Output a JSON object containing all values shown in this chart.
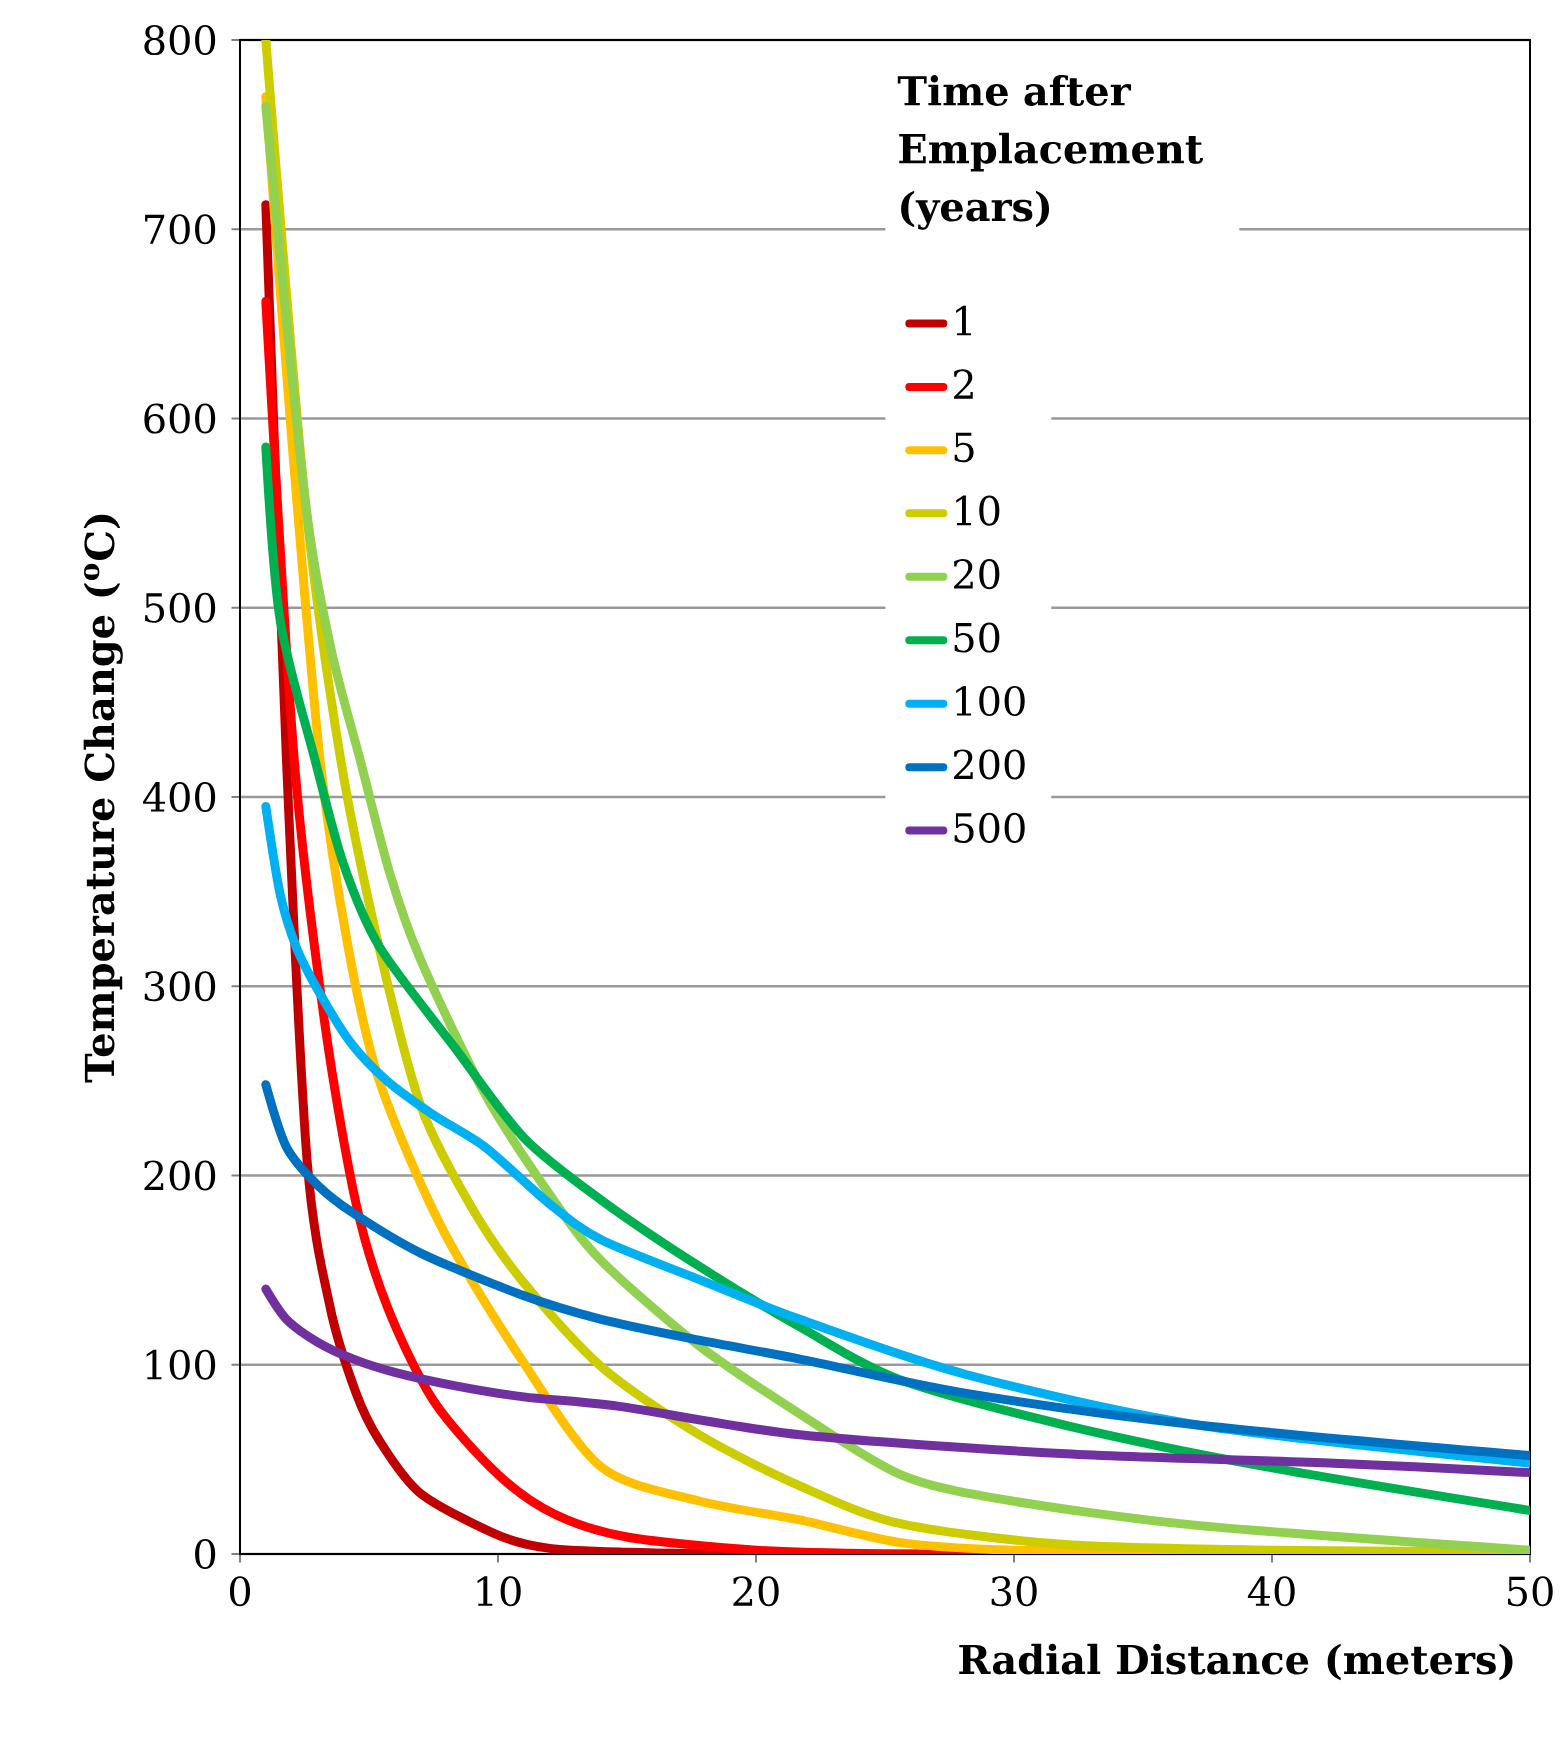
{
  "chart_data": {
    "type": "line",
    "xlabel": "Radial Distance (meters)",
    "ylabel": "Temperature Change ($^{o}$C)",
    "legend_title": "Time after Emplacement (years)",
    "legend": "top right",
    "grid": "y",
    "xlim": [
      0,
      50
    ],
    "ylim": [
      0,
      800
    ],
    "xticks": [
      0,
      10,
      20,
      30,
      40,
      50
    ],
    "yticks": [
      0,
      100,
      200,
      300,
      400,
      500,
      600,
      700,
      800
    ],
    "series": [
      {
        "name": "1",
        "color": "#c00000",
        "x": [
          1,
          1.8,
          2.6,
          3.5,
          4.5,
          5.4,
          7,
          10,
          12,
          15,
          20,
          30,
          50
        ],
        "values": [
          713,
          420,
          208,
          130,
          85,
          60,
          32,
          10,
          3,
          1,
          0,
          0,
          0
        ]
      },
      {
        "name": "2",
        "color": "#ff0000",
        "x": [
          1,
          2.1,
          3.3,
          4.5,
          5.7,
          7.5,
          10,
          12.2,
          15,
          20,
          25,
          30,
          50
        ],
        "values": [
          662,
          420,
          279,
          185,
          131,
          81,
          42,
          21,
          9,
          2,
          0,
          0,
          0
        ]
      },
      {
        "name": "5",
        "color": "#ffc000",
        "x": [
          1,
          2,
          3.1,
          4.2,
          5.4,
          7.8,
          10.9,
          14,
          17.8,
          21.7,
          25.6,
          30,
          40,
          50
        ],
        "values": [
          770,
          590,
          420,
          320,
          250,
          173,
          103,
          46,
          28,
          18,
          6,
          2,
          0,
          0
        ]
      },
      {
        "name": "10",
        "color": "#cccc00",
        "x": [
          1,
          2.5,
          3.9,
          5.4,
          7,
          8.9,
          10.9,
          14,
          17.8,
          21.7,
          25.6,
          32,
          40,
          50
        ],
        "values": [
          800,
          560,
          420,
          320,
          237,
          185,
          145,
          99,
          63,
          36,
          16,
          5,
          2,
          1
        ]
      },
      {
        "name": "20",
        "color": "#92d050",
        "x": [
          1,
          2.5,
          3.5,
          4.65,
          5.8,
          7,
          9.5,
          12,
          14,
          17.8,
          21.7,
          25.6,
          29.5,
          37.2,
          50
        ],
        "values": [
          765,
          560,
          480,
          420,
          360,
          314,
          243,
          190,
          155,
          110,
          74,
          42,
          29,
          15,
          2
        ]
      },
      {
        "name": "50",
        "color": "#00b050",
        "x": [
          1,
          1.55,
          2.9,
          4,
          5.4,
          8.3,
          11,
          14,
          17.8,
          21.7,
          25.6,
          32,
          39.8,
          50
        ],
        "values": [
          585,
          494,
          420,
          365,
          321,
          268,
          220,
          187,
          152,
          120,
          92,
          68,
          46,
          23
        ]
      },
      {
        "name": "100",
        "color": "#00b0f0",
        "x": [
          1,
          1.55,
          2.2,
          3.1,
          4.3,
          5.7,
          7.5,
          9.5,
          12,
          14,
          17.8,
          21.7,
          28.1,
          37.2,
          50
        ],
        "values": [
          395,
          349,
          320,
          296,
          270,
          250,
          232,
          215,
          185,
          166,
          145,
          124,
          95,
          68,
          48
        ]
      },
      {
        "name": "200",
        "color": "#0070c0",
        "x": [
          1,
          1.8,
          3,
          4.4,
          7,
          10.9,
          14,
          17.8,
          21.7,
          28.1,
          37.2,
          50
        ],
        "values": [
          248,
          215,
          195,
          180,
          159,
          137,
          124,
          113,
          103,
          85,
          68,
          52
        ]
      },
      {
        "name": "500",
        "color": "#7030a0",
        "x": [
          1,
          1.8,
          3,
          4.4,
          6,
          8.3,
          11,
          14.7,
          21.7,
          32,
          42.4,
          50
        ],
        "values": [
          140,
          124,
          112,
          103,
          96,
          89,
          83,
          78,
          63,
          53,
          48,
          43
        ]
      }
    ]
  }
}
